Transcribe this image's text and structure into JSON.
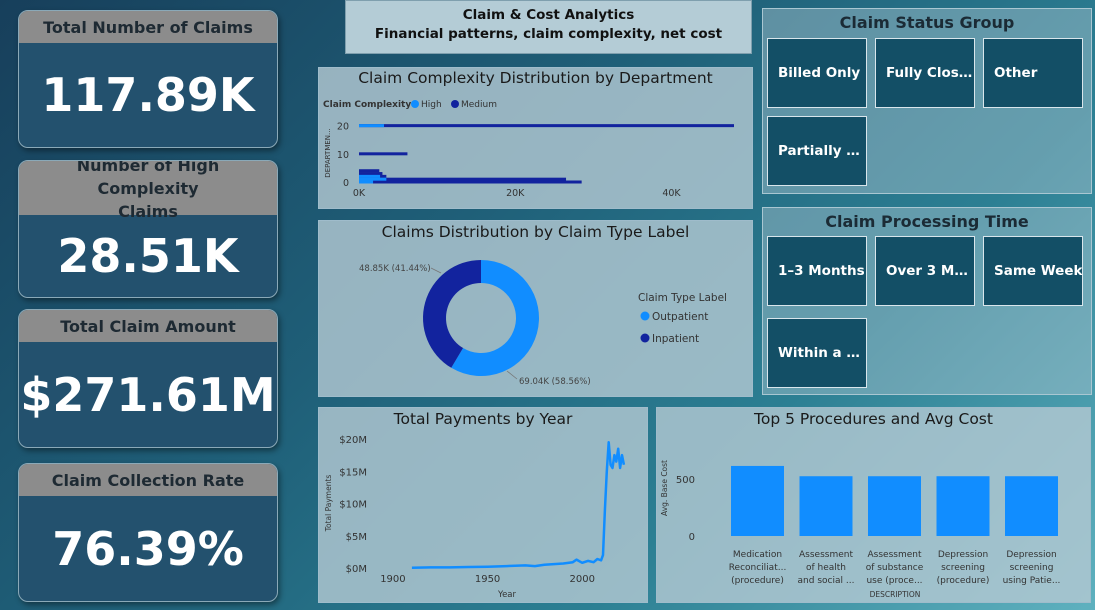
{
  "header": {
    "title": "Claim & Cost Analytics",
    "subtitle": "Financial patterns, claim complexity, net cost"
  },
  "kpis": [
    {
      "label": "Total Number of Claims",
      "value": "117.89K"
    },
    {
      "label": "Number of High Complexity Claims",
      "value": "28.51K"
    },
    {
      "label": "Total Claim Amount",
      "value": "$271.61M"
    },
    {
      "label": "Claim Collection Rate",
      "value": "76.39%"
    }
  ],
  "status_slicer": {
    "title": "Claim Status Group",
    "items": [
      "Billed Only",
      "Fully Clos…",
      "Other",
      "Partially …"
    ]
  },
  "processing_slicer": {
    "title": "Claim Processing Time",
    "items": [
      "1–3 Months",
      "Over 3 M…",
      "Same Week",
      "Within a …"
    ]
  },
  "colors": {
    "high": "#118dff",
    "medium": "#12239e"
  },
  "chart_data": [
    {
      "type": "bar",
      "title": "Claim Complexity Distribution by Department",
      "legend_title": "Claim Complexity",
      "ylabel": "DEPARTMEN...",
      "x_ticks": [
        "0K",
        "20K",
        "40K"
      ],
      "y_ticks": [
        "20",
        "10",
        "0"
      ],
      "xlim": [
        0,
        48000
      ],
      "ylim": [
        0,
        22
      ],
      "series": [
        {
          "name": "High",
          "values": [
            {
              "dept": 20,
              "count": 3200
            },
            {
              "dept": 2,
              "count": 2700
            },
            {
              "dept": 1,
              "count": 3500
            },
            {
              "dept": 0,
              "count": 1800
            }
          ]
        },
        {
          "name": "Medium",
          "values": [
            {
              "dept": 20,
              "count": 48000
            },
            {
              "dept": 10,
              "count": 6200
            },
            {
              "dept": 4,
              "count": 2600
            },
            {
              "dept": 3,
              "count": 3000
            },
            {
              "dept": 2,
              "count": 3500
            },
            {
              "dept": 1,
              "count": 26500
            },
            {
              "dept": 0,
              "count": 28500
            }
          ]
        }
      ]
    },
    {
      "type": "pie",
      "title": "Claims Distribution by Claim Type Label",
      "legend_title": "Claim Type Label",
      "labels": [
        "Outpatient",
        "Inpatient"
      ],
      "values": [
        69.04,
        48.85
      ],
      "data_labels": [
        "69.04K (58.56%)",
        "48.85K (41.44%)"
      ]
    },
    {
      "type": "line",
      "title": "Total Payments by Year",
      "xlabel": "Year",
      "ylabel": "Total Payments",
      "x_ticks": [
        "1900",
        "1950",
        "2000"
      ],
      "y_ticks": [
        "$20M",
        "$15M",
        "$10M",
        "$5M",
        "$0M"
      ],
      "xlim": [
        1890,
        2030
      ],
      "ylim": [
        0,
        20
      ],
      "x": [
        1910,
        1920,
        1930,
        1940,
        1950,
        1960,
        1970,
        1975,
        1980,
        1985,
        1990,
        1995,
        1997,
        2000,
        2003,
        2006,
        2008,
        2010,
        2011,
        2012,
        2013,
        2014,
        2015,
        2016,
        2017,
        2018,
        2019,
        2020,
        2021,
        2022
      ],
      "values": [
        0.05,
        0.1,
        0.1,
        0.15,
        0.2,
        0.3,
        0.4,
        0.3,
        0.5,
        0.6,
        0.7,
        0.9,
        1.3,
        0.8,
        1.1,
        0.9,
        1.4,
        1.2,
        2.0,
        9.0,
        15.0,
        19.5,
        16.0,
        15.5,
        17.5,
        16.5,
        18.5,
        15.5,
        17.5,
        16.0
      ]
    },
    {
      "type": "bar",
      "title": "Top 5 Procedures and Avg Cost",
      "xlabel": "DESCRIPTION",
      "ylabel": "Avg. Base Cost",
      "y_ticks": [
        "500",
        "0"
      ],
      "ylim": [
        0,
        700
      ],
      "categories": [
        [
          "Medication",
          "Reconciliat...",
          "(procedure)"
        ],
        [
          "Assessment",
          "of health",
          "and social ..."
        ],
        [
          "Assessment",
          "of substance",
          "use (proce..."
        ],
        [
          "Depression",
          "screening",
          "(procedure)"
        ],
        [
          "Depression",
          "screening",
          "using Patie..."
        ]
      ],
      "values": [
        613,
        523,
        523,
        523,
        523
      ]
    }
  ]
}
